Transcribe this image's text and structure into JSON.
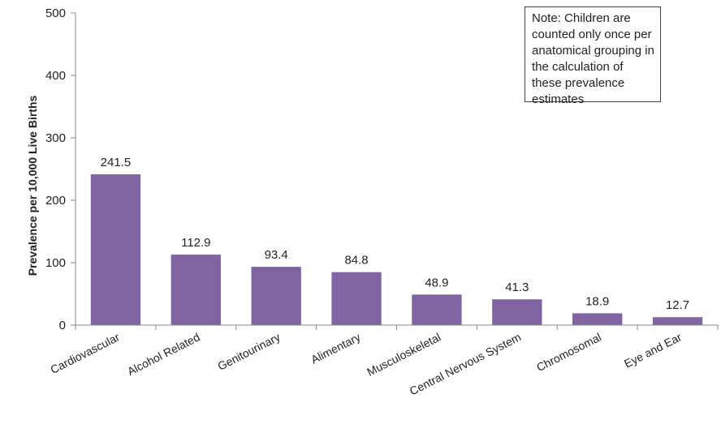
{
  "chart_data": {
    "type": "bar",
    "categories": [
      "Cardiovascular",
      "Alcohol Related",
      "Genitourinary",
      "Alimentary",
      "Musculoskeletal",
      "Central Nervous System",
      "Chromosomal",
      "Eye and Ear"
    ],
    "values": [
      241.5,
      112.9,
      93.4,
      84.8,
      48.9,
      41.3,
      18.9,
      12.7
    ],
    "data_labels": [
      "241.5",
      "112.9",
      "93.4",
      "84.8",
      "48.9",
      "41.3",
      "18.9",
      "12.7"
    ],
    "title": "",
    "xlabel": "",
    "ylabel": "Prevalence per 10,000 Live Births",
    "ylim": [
      0,
      500
    ],
    "yticks": [
      0,
      100,
      200,
      300,
      400,
      500
    ],
    "grid": false,
    "bar_color": "#8064a2",
    "annotation": "Note: Children are counted only once per anatomical grouping in the calculation of these prevalence estimates"
  }
}
